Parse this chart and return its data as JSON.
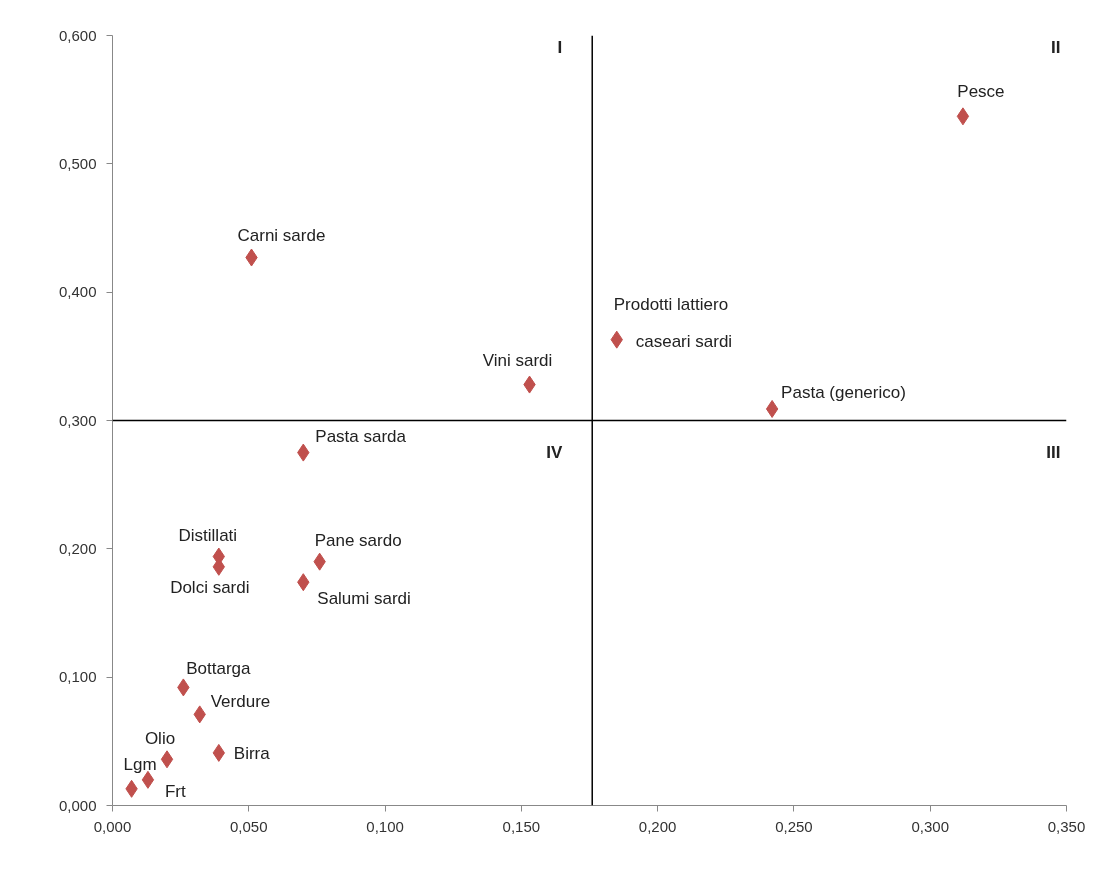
{
  "chart_data": {
    "type": "scatter",
    "marker": "diamond",
    "grid": false,
    "xlim": [
      0,
      0.35
    ],
    "ylim": [
      0,
      0.6
    ],
    "xticks": [
      {
        "value": 0,
        "label": "0,000"
      },
      {
        "value": 0.05,
        "label": "0,050"
      },
      {
        "value": 0.1,
        "label": "0,100"
      },
      {
        "value": 0.15,
        "label": "0,150"
      },
      {
        "value": 0.2,
        "label": "0,200"
      },
      {
        "value": 0.25,
        "label": "0,250"
      },
      {
        "value": 0.3,
        "label": "0,300"
      },
      {
        "value": 0.35,
        "label": "0,350"
      }
    ],
    "yticks": [
      {
        "value": 0,
        "label": "0,000"
      },
      {
        "value": 0.1,
        "label": "0,100"
      },
      {
        "value": 0.2,
        "label": "0,200"
      },
      {
        "value": 0.3,
        "label": "0,300"
      },
      {
        "value": 0.4,
        "label": "0,400"
      },
      {
        "value": 0.5,
        "label": "0,500"
      },
      {
        "value": 0.6,
        "label": "0,600"
      }
    ],
    "ref_lines": [
      {
        "axis": "x",
        "value": 0.176,
        "color": "#000000"
      },
      {
        "axis": "y",
        "value": 0.3,
        "color": "#000000"
      }
    ],
    "annotations": [
      "I",
      "II",
      "III",
      "IV"
    ],
    "series": [
      {
        "name": "Pesce",
        "color": "#c0504d",
        "x": [
          0.312
        ],
        "values": [
          0.537
        ]
      },
      {
        "name": "Carni sarde",
        "color": "#c0504d",
        "x": [
          0.051
        ],
        "values": [
          0.427
        ]
      },
      {
        "name": "Prodotti lattiero\ncaseari sardi",
        "color": "#c0504d",
        "x": [
          0.185
        ],
        "values": [
          0.363
        ]
      },
      {
        "name": "Vini sardi",
        "color": "#c0504d",
        "x": [
          0.153
        ],
        "values": [
          0.328
        ]
      },
      {
        "name": "Pasta (generico)",
        "color": "#c0504d",
        "x": [
          0.242
        ],
        "values": [
          0.309
        ]
      },
      {
        "name": "Pasta sarda",
        "color": "#c0504d",
        "x": [
          0.07
        ],
        "values": [
          0.275
        ]
      },
      {
        "name": "Distillati",
        "color": "#c0504d",
        "x": [
          0.039
        ],
        "values": [
          0.194
        ]
      },
      {
        "name": "Dolci sardi",
        "color": "#c0504d",
        "x": [
          0.039
        ],
        "values": [
          0.186
        ]
      },
      {
        "name": "Pane sardo",
        "color": "#c0504d",
        "x": [
          0.076
        ],
        "values": [
          0.19
        ]
      },
      {
        "name": "Salumi sardi",
        "color": "#c0504d",
        "x": [
          0.07
        ],
        "values": [
          0.174
        ]
      },
      {
        "name": "Bottarga",
        "color": "#c0504d",
        "x": [
          0.026
        ],
        "values": [
          0.092
        ]
      },
      {
        "name": "Verdure",
        "color": "#c0504d",
        "x": [
          0.032
        ],
        "values": [
          0.071
        ]
      },
      {
        "name": "Birra",
        "color": "#c0504d",
        "x": [
          0.039
        ],
        "values": [
          0.041
        ]
      },
      {
        "name": "Olio",
        "color": "#c0504d",
        "x": [
          0.02
        ],
        "values": [
          0.036
        ]
      },
      {
        "name": "Frt",
        "color": "#c0504d",
        "x": [
          0.013
        ],
        "values": [
          0.02
        ]
      },
      {
        "name": "Lgm",
        "color": "#c0504d",
        "x": [
          0.007
        ],
        "values": [
          0.013
        ]
      }
    ]
  }
}
